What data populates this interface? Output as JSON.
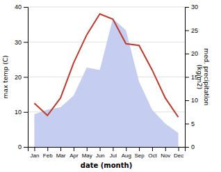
{
  "chart_data": {
    "type": "line",
    "categories": [
      "Jan",
      "Feb",
      "Mar",
      "Apr",
      "May",
      "Jun",
      "Jul",
      "Aug",
      "Sep",
      "Oct",
      "Nov",
      "Dec"
    ],
    "series": [
      {
        "type": "area",
        "axis": "y2",
        "color": "#c5cdf0",
        "values": [
          7.0,
          8.0,
          8.5,
          11.0,
          17.0,
          16.5,
          27.5,
          25.0,
          14.0,
          8.0,
          5.0,
          3.0
        ]
      },
      {
        "type": "line",
        "color": "#c0392b",
        "values": [
          12.5,
          9.0,
          14.0,
          24.0,
          32.0,
          38.0,
          36.5,
          29.5,
          29.0,
          22.0,
          14.0,
          8.5
        ]
      }
    ],
    "xlabel": "date (month)",
    "ylabel": "max temp (C)",
    "y2label": "med. precipitation\n(kg/m2)",
    "ylim": [
      0,
      40
    ],
    "yticks": [
      0,
      10,
      20,
      30,
      40
    ],
    "y2lim": [
      0,
      30
    ],
    "y2ticks": [
      0,
      5,
      10,
      15,
      20,
      25,
      30
    ],
    "grid": true
  }
}
